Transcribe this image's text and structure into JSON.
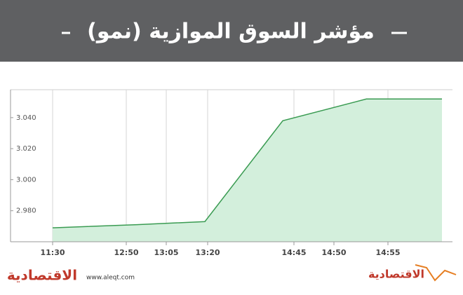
{
  "chart_data": {
    "type": "area",
    "title": "مؤشر السوق الموازية (نمو)",
    "x": [
      "11:30",
      "12:54",
      "13:19",
      "14:34",
      "14:53",
      "15:00"
    ],
    "values": [
      2.969,
      2.971,
      2.973,
      3.038,
      3.052,
      3.052
    ],
    "color": "#3a9b52",
    "fill": "#d3efdc",
    "ylim": [
      2.96,
      3.058
    ],
    "yticks": [
      {
        "value": 2.98,
        "label": "2.980"
      },
      {
        "value": 3.0,
        "label": "3.000"
      },
      {
        "value": 3.02,
        "label": "3.020"
      },
      {
        "value": 3.04,
        "label": "3.040"
      }
    ],
    "xticks": [
      "11:30",
      "12:50",
      "13:05",
      "13:20",
      "14:45",
      "14:50",
      "14:55"
    ],
    "grid": true
  },
  "footer": {
    "left_logo": "الاقتصادية",
    "url": "www.aleqt.com",
    "right_logo": "الاقتصادية"
  }
}
